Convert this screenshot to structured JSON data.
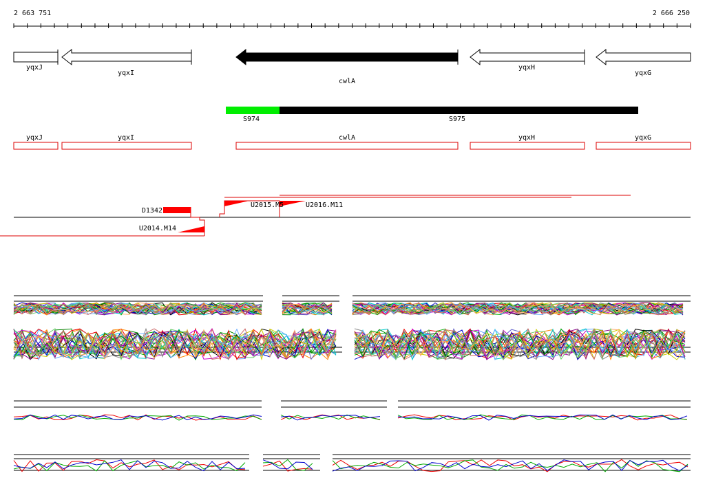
{
  "ruler": {
    "start": "2 663 751",
    "end": "2 666 250"
  },
  "genes": [
    {
      "label": "yqxJ"
    },
    {
      "label": "yqxI"
    },
    {
      "label": "cwlA"
    },
    {
      "label": "yqxH"
    },
    {
      "label": "yqxG"
    }
  ],
  "segments": [
    {
      "label": "S974"
    },
    {
      "label": "S975"
    }
  ],
  "annotations": [
    {
      "label": "yqxJ"
    },
    {
      "label": "yqxI"
    },
    {
      "label": "cwlA"
    },
    {
      "label": "yqxH"
    },
    {
      "label": "yqxG"
    }
  ],
  "features": [
    {
      "label": "D1342"
    },
    {
      "label": "U2015.M5"
    },
    {
      "label": "U2016.M11"
    },
    {
      "label": "U2014.M14"
    }
  ]
}
